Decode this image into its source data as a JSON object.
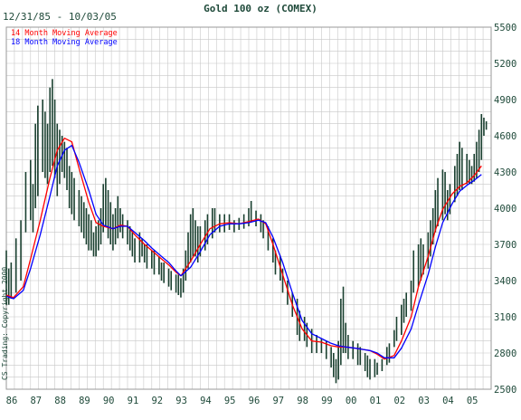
{
  "chart_data": {
    "type": "line",
    "title": "Gold 100 oz (COMEX)",
    "date_range": "12/31/85 - 10/03/05",
    "watermark": "CS Trading: Copyright 2000",
    "xlabel": "",
    "ylabel": "",
    "x_tick_labels": [
      "86",
      "87",
      "88",
      "89",
      "90",
      "91",
      "92",
      "93",
      "94",
      "95",
      "96",
      "97",
      "98",
      "99",
      "00",
      "01",
      "02",
      "03",
      "04",
      "05"
    ],
    "y_ticks": [
      2500,
      2800,
      3100,
      3400,
      3700,
      4000,
      4300,
      4600,
      4900,
      5200,
      5500
    ],
    "ylim": [
      2500,
      5500
    ],
    "xlim": [
      1986.0,
      2006.0
    ],
    "grid": true,
    "legend_position": "top-left",
    "series": [
      {
        "name": "14 Month Moving Average",
        "color": "#ff0000",
        "points": [
          [
            1986.0,
            3280
          ],
          [
            1986.3,
            3260
          ],
          [
            1986.7,
            3350
          ],
          [
            1987.0,
            3580
          ],
          [
            1987.4,
            3900
          ],
          [
            1987.8,
            4250
          ],
          [
            1988.1,
            4480
          ],
          [
            1988.4,
            4580
          ],
          [
            1988.7,
            4550
          ],
          [
            1989.0,
            4330
          ],
          [
            1989.4,
            4050
          ],
          [
            1989.7,
            3880
          ],
          [
            1990.0,
            3850
          ],
          [
            1990.4,
            3830
          ],
          [
            1990.7,
            3860
          ],
          [
            1991.0,
            3850
          ],
          [
            1991.3,
            3780
          ],
          [
            1991.7,
            3700
          ],
          [
            1992.0,
            3650
          ],
          [
            1992.4,
            3580
          ],
          [
            1992.7,
            3530
          ],
          [
            1993.0,
            3470
          ],
          [
            1993.2,
            3440
          ],
          [
            1993.6,
            3560
          ],
          [
            1994.0,
            3700
          ],
          [
            1994.4,
            3830
          ],
          [
            1994.8,
            3870
          ],
          [
            1995.2,
            3880
          ],
          [
            1995.6,
            3870
          ],
          [
            1996.0,
            3890
          ],
          [
            1996.4,
            3910
          ],
          [
            1996.7,
            3870
          ],
          [
            1997.0,
            3700
          ],
          [
            1997.4,
            3450
          ],
          [
            1997.8,
            3200
          ],
          [
            1998.2,
            3000
          ],
          [
            1998.6,
            2900
          ],
          [
            1999.0,
            2890
          ],
          [
            1999.4,
            2860
          ],
          [
            1999.7,
            2850
          ],
          [
            2000.0,
            2850
          ],
          [
            2000.4,
            2840
          ],
          [
            2000.7,
            2830
          ],
          [
            2001.0,
            2820
          ],
          [
            2001.3,
            2790
          ],
          [
            2001.6,
            2750
          ],
          [
            2002.0,
            2780
          ],
          [
            2002.3,
            2900
          ],
          [
            2002.7,
            3100
          ],
          [
            2003.0,
            3350
          ],
          [
            2003.4,
            3600
          ],
          [
            2003.7,
            3820
          ],
          [
            2004.0,
            3990
          ],
          [
            2004.4,
            4120
          ],
          [
            2004.7,
            4180
          ],
          [
            2005.0,
            4210
          ],
          [
            2005.3,
            4270
          ],
          [
            2005.6,
            4350
          ]
        ]
      },
      {
        "name": "18 Month Moving Average",
        "color": "#0000ff",
        "points": [
          [
            1986.0,
            3270
          ],
          [
            1986.3,
            3250
          ],
          [
            1986.7,
            3320
          ],
          [
            1987.0,
            3500
          ],
          [
            1987.4,
            3780
          ],
          [
            1987.8,
            4100
          ],
          [
            1988.1,
            4350
          ],
          [
            1988.4,
            4480
          ],
          [
            1988.7,
            4520
          ],
          [
            1989.0,
            4380
          ],
          [
            1989.4,
            4150
          ],
          [
            1989.7,
            3950
          ],
          [
            1990.0,
            3860
          ],
          [
            1990.4,
            3830
          ],
          [
            1990.7,
            3850
          ],
          [
            1991.0,
            3850
          ],
          [
            1991.3,
            3800
          ],
          [
            1991.7,
            3730
          ],
          [
            1992.0,
            3670
          ],
          [
            1992.4,
            3600
          ],
          [
            1992.7,
            3550
          ],
          [
            1993.0,
            3480
          ],
          [
            1993.2,
            3440
          ],
          [
            1993.6,
            3510
          ],
          [
            1994.0,
            3640
          ],
          [
            1994.4,
            3780
          ],
          [
            1994.8,
            3850
          ],
          [
            1995.2,
            3870
          ],
          [
            1995.6,
            3870
          ],
          [
            1996.0,
            3880
          ],
          [
            1996.4,
            3900
          ],
          [
            1996.7,
            3880
          ],
          [
            1997.0,
            3760
          ],
          [
            1997.4,
            3550
          ],
          [
            1997.8,
            3300
          ],
          [
            1998.2,
            3070
          ],
          [
            1998.6,
            2960
          ],
          [
            1999.0,
            2920
          ],
          [
            1999.4,
            2880
          ],
          [
            1999.7,
            2860
          ],
          [
            2000.0,
            2850
          ],
          [
            2000.4,
            2840
          ],
          [
            2000.7,
            2830
          ],
          [
            2001.0,
            2820
          ],
          [
            2001.3,
            2800
          ],
          [
            2001.6,
            2760
          ],
          [
            2002.0,
            2760
          ],
          [
            2002.3,
            2840
          ],
          [
            2002.7,
            3000
          ],
          [
            2003.0,
            3200
          ],
          [
            2003.4,
            3450
          ],
          [
            2003.7,
            3680
          ],
          [
            2004.0,
            3880
          ],
          [
            2004.4,
            4040
          ],
          [
            2004.7,
            4140
          ],
          [
            2005.0,
            4190
          ],
          [
            2005.3,
            4230
          ],
          [
            2005.6,
            4280
          ]
        ]
      }
    ],
    "price_bars_color": "#1a4030",
    "price_bars": [
      [
        1986.0,
        3200,
        3650
      ],
      [
        1986.1,
        3200,
        3500
      ],
      [
        1986.2,
        3250,
        3550
      ],
      [
        1986.4,
        3300,
        3750
      ],
      [
        1986.6,
        3400,
        3900
      ],
      [
        1986.8,
        3800,
        4300
      ],
      [
        1987.0,
        3900,
        4400
      ],
      [
        1987.1,
        3800,
        4200
      ],
      [
        1987.2,
        4000,
        4700
      ],
      [
        1987.3,
        4100,
        4850
      ],
      [
        1987.5,
        4300,
        4900
      ],
      [
        1987.6,
        4250,
        4800
      ],
      [
        1987.7,
        4200,
        4700
      ],
      [
        1987.8,
        4300,
        5000
      ],
      [
        1987.9,
        4350,
        5070
      ],
      [
        1988.0,
        4250,
        4900
      ],
      [
        1988.1,
        4100,
        4700
      ],
      [
        1988.2,
        4200,
        4650
      ],
      [
        1988.3,
        4300,
        4600
      ],
      [
        1988.4,
        4250,
        4550
      ],
      [
        1988.5,
        4150,
        4500
      ],
      [
        1988.6,
        4000,
        4350
      ],
      [
        1988.7,
        3950,
        4300
      ],
      [
        1988.8,
        3900,
        4250
      ],
      [
        1989.0,
        3850,
        4150
      ],
      [
        1989.1,
        3800,
        4100
      ],
      [
        1989.2,
        3750,
        4050
      ],
      [
        1989.3,
        3700,
        4000
      ],
      [
        1989.4,
        3650,
        3950
      ],
      [
        1989.5,
        3650,
        3900
      ],
      [
        1989.6,
        3600,
        3800
      ],
      [
        1989.7,
        3600,
        3850
      ],
      [
        1989.8,
        3650,
        3900
      ],
      [
        1989.9,
        3700,
        4000
      ],
      [
        1990.0,
        3800,
        4200
      ],
      [
        1990.1,
        3850,
        4250
      ],
      [
        1990.2,
        3750,
        4150
      ],
      [
        1990.3,
        3700,
        4050
      ],
      [
        1990.4,
        3650,
        3950
      ],
      [
        1990.5,
        3700,
        4000
      ],
      [
        1990.6,
        3750,
        4100
      ],
      [
        1990.7,
        3800,
        4000
      ],
      [
        1990.8,
        3750,
        3950
      ],
      [
        1991.0,
        3700,
        3900
      ],
      [
        1991.1,
        3650,
        3850
      ],
      [
        1991.2,
        3600,
        3800
      ],
      [
        1991.3,
        3550,
        3750
      ],
      [
        1991.5,
        3550,
        3800
      ],
      [
        1991.6,
        3600,
        3750
      ],
      [
        1991.7,
        3550,
        3700
      ],
      [
        1991.8,
        3500,
        3700
      ],
      [
        1992.0,
        3500,
        3650
      ],
      [
        1992.1,
        3450,
        3650
      ],
      [
        1992.3,
        3450,
        3600
      ],
      [
        1992.4,
        3400,
        3550
      ],
      [
        1992.5,
        3380,
        3550
      ],
      [
        1992.7,
        3350,
        3500
      ],
      [
        1992.8,
        3320,
        3480
      ],
      [
        1993.0,
        3300,
        3450
      ],
      [
        1993.1,
        3280,
        3450
      ],
      [
        1993.2,
        3260,
        3420
      ],
      [
        1993.3,
        3300,
        3500
      ],
      [
        1993.4,
        3400,
        3650
      ],
      [
        1993.5,
        3500,
        3800
      ],
      [
        1993.6,
        3550,
        3950
      ],
      [
        1993.7,
        3600,
        4000
      ],
      [
        1993.8,
        3600,
        3900
      ],
      [
        1993.9,
        3550,
        3850
      ],
      [
        1994.0,
        3600,
        3850
      ],
      [
        1994.2,
        3650,
        3900
      ],
      [
        1994.3,
        3700,
        3950
      ],
      [
        1994.5,
        3750,
        4000
      ],
      [
        1994.6,
        3800,
        4000
      ],
      [
        1994.8,
        3800,
        3950
      ],
      [
        1995.0,
        3800,
        3950
      ],
      [
        1995.2,
        3820,
        3950
      ],
      [
        1995.4,
        3800,
        3900
      ],
      [
        1995.6,
        3820,
        3920
      ],
      [
        1995.8,
        3830,
        3950
      ],
      [
        1996.0,
        3850,
        4000
      ],
      [
        1996.1,
        3880,
        4060
      ],
      [
        1996.3,
        3850,
        3980
      ],
      [
        1996.5,
        3800,
        3950
      ],
      [
        1996.6,
        3750,
        3900
      ],
      [
        1996.8,
        3650,
        3850
      ],
      [
        1997.0,
        3550,
        3750
      ],
      [
        1997.1,
        3450,
        3650
      ],
      [
        1997.3,
        3400,
        3600
      ],
      [
        1997.4,
        3300,
        3500
      ],
      [
        1997.6,
        3200,
        3400
      ],
      [
        1997.8,
        3100,
        3300
      ],
      [
        1998.0,
        2950,
        3250
      ],
      [
        1998.1,
        2900,
        3150
      ],
      [
        1998.3,
        2900,
        3100
      ],
      [
        1998.4,
        2850,
        3050
      ],
      [
        1998.6,
        2800,
        3000
      ],
      [
        1998.8,
        2800,
        2950
      ],
      [
        1999.0,
        2800,
        2920
      ],
      [
        1999.2,
        2750,
        2900
      ],
      [
        1999.4,
        2680,
        2850
      ],
      [
        1999.5,
        2600,
        2800
      ],
      [
        1999.6,
        2550,
        2750
      ],
      [
        1999.7,
        2580,
        2900
      ],
      [
        1999.8,
        2700,
        3250
      ],
      [
        1999.9,
        2800,
        3350
      ],
      [
        2000.0,
        2800,
        3050
      ],
      [
        2000.1,
        2750,
        2950
      ],
      [
        2000.3,
        2750,
        2900
      ],
      [
        2000.5,
        2700,
        2880
      ],
      [
        2000.6,
        2700,
        2850
      ],
      [
        2000.8,
        2650,
        2800
      ],
      [
        2000.9,
        2600,
        2780
      ],
      [
        2001.0,
        2580,
        2750
      ],
      [
        2001.2,
        2600,
        2750
      ],
      [
        2001.3,
        2620,
        2720
      ],
      [
        2001.5,
        2650,
        2750
      ],
      [
        2001.7,
        2700,
        2850
      ],
      [
        2001.8,
        2720,
        2880
      ],
      [
        2002.0,
        2850,
        2990
      ],
      [
        2002.1,
        2900,
        3100
      ],
      [
        2002.3,
        2950,
        3200
      ],
      [
        2002.4,
        3050,
        3250
      ],
      [
        2002.5,
        3100,
        3300
      ],
      [
        2002.7,
        3150,
        3400
      ],
      [
        2002.8,
        3300,
        3650
      ],
      [
        2003.0,
        3350,
        3700
      ],
      [
        2003.1,
        3400,
        3750
      ],
      [
        2003.2,
        3450,
        3700
      ],
      [
        2003.4,
        3500,
        3800
      ],
      [
        2003.5,
        3600,
        3900
      ],
      [
        2003.6,
        3700,
        4000
      ],
      [
        2003.7,
        3800,
        4150
      ],
      [
        2003.8,
        3850,
        4250
      ],
      [
        2004.0,
        3900,
        4320
      ],
      [
        2004.1,
        3950,
        4300
      ],
      [
        2004.2,
        3900,
        4150
      ],
      [
        2004.3,
        3950,
        4200
      ],
      [
        2004.5,
        4050,
        4350
      ],
      [
        2004.6,
        4100,
        4450
      ],
      [
        2004.7,
        4150,
        4550
      ],
      [
        2004.8,
        4150,
        4500
      ],
      [
        2005.0,
        4200,
        4450
      ],
      [
        2005.1,
        4200,
        4400
      ],
      [
        2005.2,
        4200,
        4350
      ],
      [
        2005.3,
        4220,
        4450
      ],
      [
        2005.4,
        4250,
        4550
      ],
      [
        2005.5,
        4300,
        4650
      ],
      [
        2005.6,
        4400,
        4780
      ],
      [
        2005.7,
        4600,
        4750
      ],
      [
        2005.8,
        4650,
        4720
      ]
    ]
  }
}
